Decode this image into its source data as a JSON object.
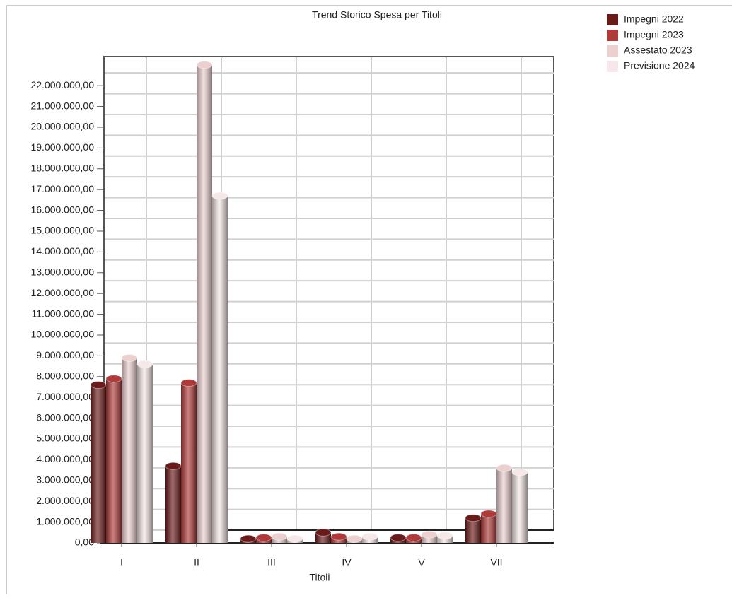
{
  "chart_data": {
    "type": "bar3d",
    "title": "Trend Storico Spesa per Titoli",
    "x_label": "Titoli",
    "categories": [
      "I",
      "II",
      "III",
      "IV",
      "V",
      "VII"
    ],
    "series": [
      {
        "name": "Impegni 2022",
        "color": "#6b1a1a",
        "values": [
          7600000,
          3700000,
          200000,
          500000,
          250000,
          1200000
        ]
      },
      {
        "name": "Impegni 2023",
        "color": "#b03a3a",
        "values": [
          7900000,
          7700000,
          250000,
          300000,
          250000,
          1400000
        ]
      },
      {
        "name": "Assestato 2023",
        "color": "#ecd0d0",
        "values": [
          8900000,
          23000000,
          300000,
          200000,
          400000,
          3600000
        ]
      },
      {
        "name": "Previsione 2024",
        "color": "#f6e8e8",
        "values": [
          8600000,
          16700000,
          200000,
          300000,
          350000,
          3400000
        ]
      }
    ],
    "ylim": [
      0,
      23400000
    ],
    "yticks": [
      {
        "value": 0,
        "label": "0,00"
      },
      {
        "value": 1000000,
        "label": "1.000.000,00"
      },
      {
        "value": 2000000,
        "label": "2.000.000,00"
      },
      {
        "value": 3000000,
        "label": "3.000.000,00"
      },
      {
        "value": 4000000,
        "label": "4.000.000,00"
      },
      {
        "value": 5000000,
        "label": "5.000.000,00"
      },
      {
        "value": 6000000,
        "label": "6.000.000,00"
      },
      {
        "value": 7000000,
        "label": "7.000.000,00"
      },
      {
        "value": 8000000,
        "label": "8.000.000,00"
      },
      {
        "value": 9000000,
        "label": "9.000.000,00"
      },
      {
        "value": 10000000,
        "label": "10.000.000,00"
      },
      {
        "value": 11000000,
        "label": "11.000.000,00"
      },
      {
        "value": 12000000,
        "label": "12.000.000,00"
      },
      {
        "value": 13000000,
        "label": "13.000.000,00"
      },
      {
        "value": 14000000,
        "label": "14.000.000,00"
      },
      {
        "value": 15000000,
        "label": "15.000.000,00"
      },
      {
        "value": 16000000,
        "label": "16.000.000,00"
      },
      {
        "value": 17000000,
        "label": "17.000.000,00"
      },
      {
        "value": 18000000,
        "label": "18.000.000,00"
      },
      {
        "value": 19000000,
        "label": "19.000.000,00"
      },
      {
        "value": 20000000,
        "label": "20.000.000,00"
      },
      {
        "value": 21000000,
        "label": "21.000.000,00"
      },
      {
        "value": 22000000,
        "label": "22.000.000,00"
      }
    ],
    "grid": true,
    "legend": "top-right"
  }
}
